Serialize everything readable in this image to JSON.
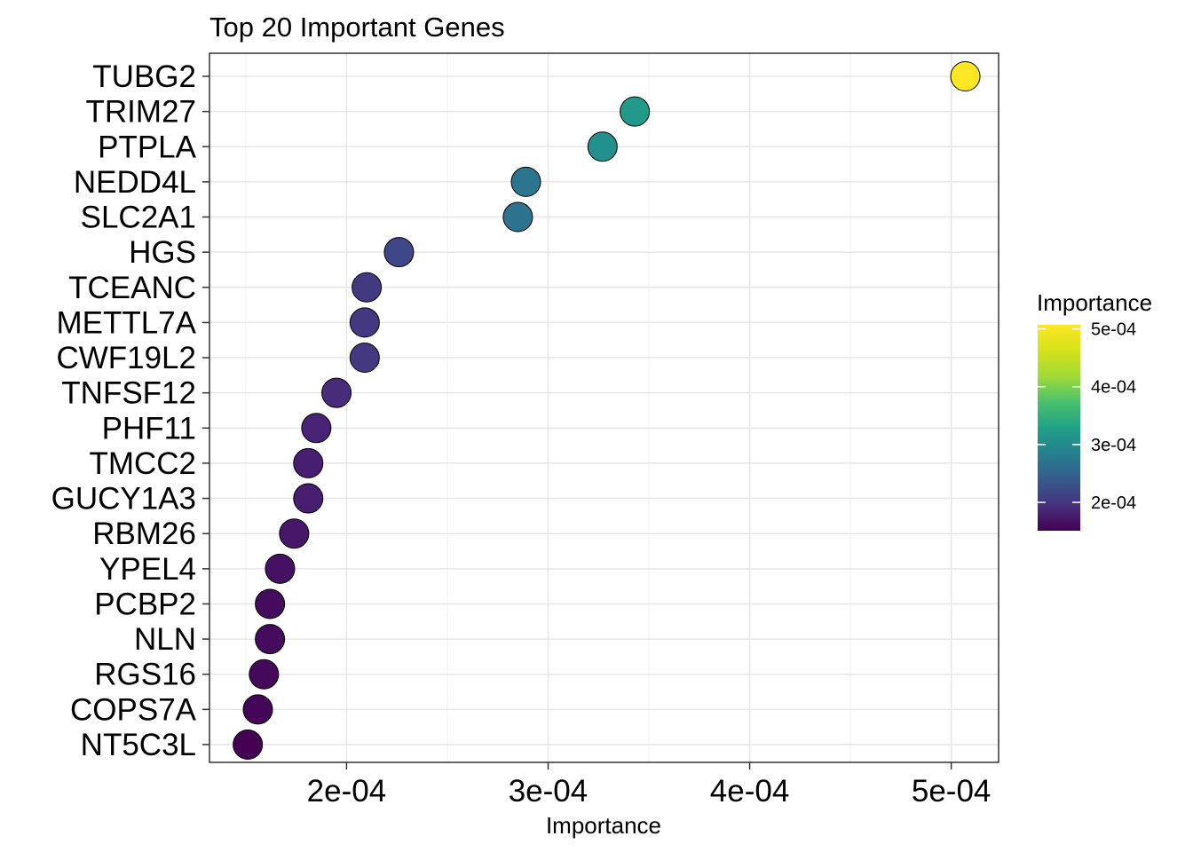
{
  "chart_data": {
    "type": "scatter",
    "title": "Top 20 Important Genes",
    "xlabel": "Importance",
    "ylabel": "",
    "xlim": [
      0.000132,
      0.0005235
    ],
    "x_ticks": [
      {
        "value": 0.0002,
        "label": "2e-04"
      },
      {
        "value": 0.0003,
        "label": "3e-04"
      },
      {
        "value": 0.0004,
        "label": "4e-04"
      },
      {
        "value": 0.0005,
        "label": "5e-04"
      }
    ],
    "categories": [
      "TUBG2",
      "TRIM27",
      "PTPLA",
      "NEDD4L",
      "SLC2A1",
      "HGS",
      "TCEANC",
      "METTL7A",
      "CWF19L2",
      "TNFSF12",
      "PHF11",
      "TMCC2",
      "GUCY1A3",
      "RBM26",
      "YPEL4",
      "PCBP2",
      "NLN",
      "RGS16",
      "COPS7A",
      "NT5C3L"
    ],
    "values": [
      0.000507,
      0.000343,
      0.000327,
      0.000289,
      0.000285,
      0.000226,
      0.00021,
      0.000209,
      0.000209,
      0.000195,
      0.000185,
      0.000181,
      0.000181,
      0.000174,
      0.000167,
      0.000162,
      0.000162,
      0.000159,
      0.000156,
      0.000151
    ],
    "grid": true,
    "legend": {
      "title": "Importance",
      "position": "right",
      "colormap": "viridis",
      "range": [
        0.000151,
        0.000507
      ],
      "ticks": [
        {
          "value": 0.0002,
          "label": "2e-04"
        },
        {
          "value": 0.0003,
          "label": "3e-04"
        },
        {
          "value": 0.0004,
          "label": "4e-04"
        },
        {
          "value": 0.0005,
          "label": "5e-04"
        }
      ]
    }
  }
}
